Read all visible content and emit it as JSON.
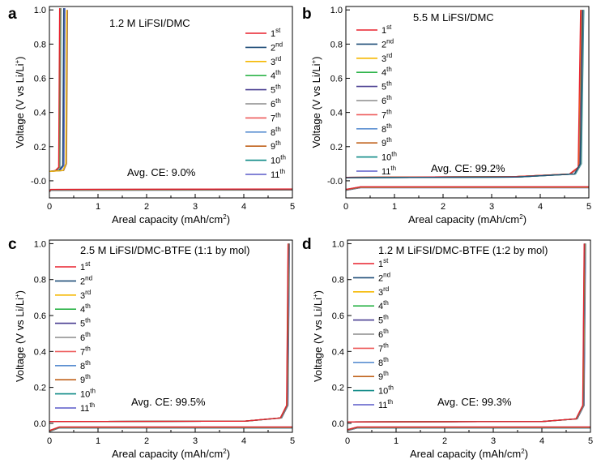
{
  "chart_data": [
    {
      "panel": "a",
      "type": "line",
      "title": "1.2 M LiFSI/DMC",
      "annotation": "Avg. CE: 9.0%",
      "xlabel": "Areal capacity (mAh/cm",
      "xlabel_sup": "2",
      "xlabel_end": ")",
      "ylabel": "Voltage (V vs Li/Li",
      "ylabel_sup": "+",
      "ylabel_end": ")",
      "xlim": [
        0,
        5
      ],
      "ylim": [
        -0.1,
        1.02
      ],
      "xticks": [
        "0",
        "1",
        "2",
        "3",
        "4",
        "5"
      ],
      "yticks": [
        "-0.0",
        "0.2",
        "0.4",
        "0.6",
        "0.8",
        "1.0"
      ],
      "yticks_values": [
        0,
        0.2,
        0.4,
        0.6,
        0.8,
        1.0
      ],
      "legend": {
        "position": "top-right",
        "labels": [
          {
            "base": "1",
            "sup": "st"
          },
          {
            "base": "2",
            "sup": "nd"
          },
          {
            "base": "3",
            "sup": "rd"
          },
          {
            "base": "4",
            "sup": "th"
          },
          {
            "base": "5",
            "sup": "th"
          },
          {
            "base": "6",
            "sup": "th"
          },
          {
            "base": "7",
            "sup": "th"
          },
          {
            "base": "8",
            "sup": "th"
          },
          {
            "base": "9",
            "sup": "th"
          },
          {
            "base": "10",
            "sup": "th"
          },
          {
            "base": "11",
            "sup": "th"
          }
        ]
      },
      "curves": {
        "plating": [
          [
            0,
            -0.06
          ],
          [
            0.03,
            -0.05
          ],
          [
            5,
            -0.048
          ]
        ],
        "stripping": [
          [
            [
              0,
              0.055
            ],
            [
              0.12,
              0.06
            ],
            [
              0.19,
              0.08
            ],
            [
              0.21,
              1.01
            ]
          ],
          [
            [
              0,
              0.055
            ],
            [
              0.19,
              0.06
            ],
            [
              0.27,
              0.09
            ],
            [
              0.29,
              1.01
            ]
          ],
          [
            [
              0,
              0.055
            ],
            [
              0.27,
              0.06
            ],
            [
              0.33,
              0.1
            ],
            [
              0.35,
              1.0
            ]
          ]
        ]
      }
    },
    {
      "panel": "b",
      "type": "line",
      "title": "5.5 M LiFSI/DMC",
      "annotation": "Avg. CE: 99.2%",
      "xlabel": "Areal capacity (mAh/cm",
      "xlabel_sup": "2",
      "xlabel_end": ")",
      "ylabel": "Voltage (V vs Li/Li",
      "ylabel_sup": "+",
      "ylabel_end": ")",
      "xlim": [
        0,
        5
      ],
      "ylim": [
        -0.1,
        1.02
      ],
      "xticks": [
        "0",
        "1",
        "2",
        "3",
        "4",
        "5"
      ],
      "yticks": [
        "-0.0",
        "0.2",
        "0.4",
        "0.6",
        "0.8",
        "1.0"
      ],
      "yticks_values": [
        0,
        0.2,
        0.4,
        0.6,
        0.8,
        1.0
      ],
      "legend": {
        "position": "top-right",
        "labels": [
          {
            "base": "1",
            "sup": "st"
          },
          {
            "base": "2",
            "sup": "nd"
          },
          {
            "base": "3",
            "sup": "rd"
          },
          {
            "base": "4",
            "sup": "th"
          },
          {
            "base": "5",
            "sup": "th"
          },
          {
            "base": "6",
            "sup": "th"
          },
          {
            "base": "7",
            "sup": "th"
          },
          {
            "base": "8",
            "sup": "th"
          },
          {
            "base": "9",
            "sup": "th"
          },
          {
            "base": "10",
            "sup": "th"
          },
          {
            "base": "11",
            "sup": "th"
          }
        ]
      },
      "curves": {
        "plating": [
          [
            0,
            -0.05
          ],
          [
            0.3,
            -0.035
          ],
          [
            5,
            -0.035
          ]
        ],
        "stripping": [
          [
            [
              0,
              0.02
            ],
            [
              3.5,
              0.025
            ],
            [
              4.6,
              0.04
            ],
            [
              4.78,
              0.08
            ],
            [
              4.83,
              1.0
            ]
          ],
          [
            [
              0,
              0.018
            ],
            [
              3.5,
              0.022
            ],
            [
              4.7,
              0.04
            ],
            [
              4.82,
              0.1
            ],
            [
              4.87,
              1.0
            ]
          ]
        ]
      }
    },
    {
      "panel": "c",
      "type": "line",
      "title": "2.5 M LiFSI/DMC-BTFE (1:1 by mol)",
      "annotation": "Avg. CE: 99.5%",
      "xlabel": "Areal capacity (mAh/cm",
      "xlabel_sup": "2",
      "xlabel_end": ")",
      "ylabel": "Voltage (V vs Li/Li",
      "ylabel_sup": "+",
      "ylabel_end": ")",
      "xlim": [
        0,
        5
      ],
      "ylim": [
        -0.05,
        1.02
      ],
      "xticks": [
        "0",
        "1",
        "2",
        "3",
        "4",
        "5"
      ],
      "yticks": [
        "0.0",
        "0.2",
        "0.4",
        "0.6",
        "0.8",
        "1.0"
      ],
      "yticks_values": [
        0,
        0.2,
        0.4,
        0.6,
        0.8,
        1.0
      ],
      "legend": {
        "position": "top-left",
        "labels": [
          {
            "base": "1",
            "sup": "st"
          },
          {
            "base": "2",
            "sup": "nd"
          },
          {
            "base": "3",
            "sup": "rd"
          },
          {
            "base": "4",
            "sup": "th"
          },
          {
            "base": "5",
            "sup": "th"
          },
          {
            "base": "6",
            "sup": "th"
          },
          {
            "base": "7",
            "sup": "th"
          },
          {
            "base": "8",
            "sup": "th"
          },
          {
            "base": "9",
            "sup": "th"
          },
          {
            "base": "10",
            "sup": "th"
          },
          {
            "base": "11",
            "sup": "th"
          }
        ]
      },
      "curves": {
        "plating": [
          [
            0,
            -0.04
          ],
          [
            0.2,
            -0.02
          ],
          [
            5,
            -0.02
          ]
        ],
        "stripping": [
          [
            [
              0,
              0.01
            ],
            [
              4,
              0.012
            ],
            [
              4.75,
              0.03
            ],
            [
              4.88,
              0.1
            ],
            [
              4.91,
              1.0
            ]
          ]
        ]
      }
    },
    {
      "panel": "d",
      "type": "line",
      "title": "1.2 M LiFSI/DMC-BTFE (1:2 by mol)",
      "annotation": "Avg. CE: 99.3%",
      "xlabel": "Areal capacity (mAh/cm",
      "xlabel_sup": "2",
      "xlabel_end": ")",
      "ylabel": "Voltage (V vs Li/Li",
      "ylabel_sup": "+",
      "ylabel_end": ")",
      "xlim": [
        0,
        5
      ],
      "ylim": [
        -0.05,
        1.02
      ],
      "xticks": [
        "0",
        "1",
        "2",
        "3",
        "4",
        "5"
      ],
      "yticks": [
        "0.0",
        "0.2",
        "0.4",
        "0.6",
        "0.8",
        "1.0"
      ],
      "yticks_values": [
        0,
        0.2,
        0.4,
        0.6,
        0.8,
        1.0
      ],
      "legend": {
        "position": "top-left",
        "labels": [
          {
            "base": "1",
            "sup": "st"
          },
          {
            "base": "2",
            "sup": "nd"
          },
          {
            "base": "3",
            "sup": "rd"
          },
          {
            "base": "4",
            "sup": "th"
          },
          {
            "base": "5",
            "sup": "th"
          },
          {
            "base": "6",
            "sup": "th"
          },
          {
            "base": "7",
            "sup": "th"
          },
          {
            "base": "8",
            "sup": "th"
          },
          {
            "base": "9",
            "sup": "th"
          },
          {
            "base": "10",
            "sup": "th"
          },
          {
            "base": "11",
            "sup": "th"
          }
        ]
      },
      "curves": {
        "plating": [
          [
            0,
            -0.035
          ],
          [
            0.2,
            -0.02
          ],
          [
            5,
            -0.02
          ]
        ],
        "stripping": [
          [
            [
              0,
              0.008
            ],
            [
              4,
              0.01
            ],
            [
              4.7,
              0.025
            ],
            [
              4.84,
              0.1
            ],
            [
              4.87,
              1.0
            ]
          ]
        ]
      }
    }
  ],
  "colors": {
    "cycles": [
      "#e8212d",
      "#1f4e79",
      "#f5b800",
      "#2eb44a",
      "#4a3f91",
      "#8c8c8c",
      "#ee5a5a",
      "#5b8fd1",
      "#c0621b",
      "#0f8a86",
      "#5a5ac8"
    ]
  }
}
